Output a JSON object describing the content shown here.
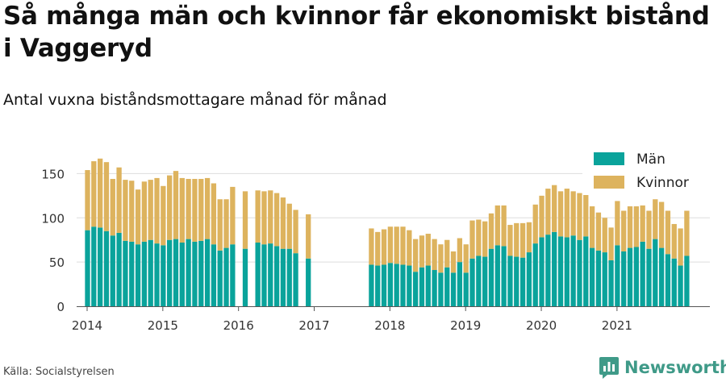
{
  "title": "Så många män och kvinnor får ekonomiskt bistånd i Vaggeryd",
  "subtitle": "Antal vuxna biståndsmottagare månad för månad",
  "source": "Källa: Socialstyrelsen",
  "brand": {
    "name": "Newsworthy",
    "logo_icon": "bar-chart-speech-bubble-icon"
  },
  "colors": {
    "men": "#0aa39b",
    "women": "#ddb35e",
    "grid": "#dddddd",
    "axis": "#555555",
    "brand": "#3f9a88"
  },
  "chart_data": {
    "type": "bar",
    "stacked": true,
    "title": "",
    "xlabel": "",
    "ylabel": "",
    "ylim": [
      0,
      175
    ],
    "yticks": [
      0,
      50,
      100,
      150
    ],
    "xticks": [
      "2014",
      "2015",
      "2016",
      "2017",
      "2018",
      "2019",
      "2020",
      "2021"
    ],
    "grid": true,
    "legend_position": "top-right",
    "x_start": "2014-01",
    "series": [
      {
        "name": "Män",
        "color": "#0aa39b",
        "values": [
          86,
          90,
          89,
          85,
          80,
          83,
          74,
          73,
          70,
          73,
          75,
          71,
          69,
          75,
          76,
          72,
          76,
          73,
          74,
          76,
          70,
          63,
          66,
          70,
          null,
          65,
          null,
          72,
          70,
          71,
          68,
          65,
          65,
          60,
          null,
          54,
          null,
          null,
          null,
          null,
          null,
          null,
          null,
          null,
          null,
          47,
          46,
          47,
          49,
          48,
          47,
          46,
          39,
          44,
          46,
          41,
          38,
          44,
          38,
          50,
          38,
          54,
          57,
          56,
          65,
          69,
          68,
          57,
          56,
          55,
          61,
          71,
          78,
          81,
          84,
          79,
          78,
          80,
          75,
          79,
          66,
          63,
          61,
          52,
          69,
          62,
          66,
          67,
          73,
          65,
          76,
          66,
          59,
          54,
          46,
          57
        ]
      },
      {
        "name": "Kvinnor",
        "color": "#ddb35e",
        "values": [
          68,
          74,
          78,
          78,
          64,
          74,
          69,
          69,
          62,
          68,
          68,
          74,
          67,
          73,
          77,
          73,
          68,
          71,
          70,
          69,
          69,
          58,
          55,
          65,
          null,
          65,
          null,
          59,
          60,
          60,
          60,
          58,
          51,
          49,
          null,
          50,
          null,
          null,
          null,
          null,
          null,
          null,
          null,
          null,
          null,
          41,
          38,
          40,
          41,
          42,
          43,
          40,
          37,
          36,
          36,
          35,
          32,
          31,
          24,
          27,
          32,
          43,
          41,
          40,
          40,
          45,
          46,
          35,
          38,
          39,
          34,
          44,
          47,
          52,
          53,
          51,
          55,
          50,
          53,
          57,
          47,
          43,
          39,
          37,
          50,
          46,
          47,
          46,
          41,
          43,
          45,
          52,
          49,
          39,
          42,
          51
        ]
      }
    ]
  }
}
